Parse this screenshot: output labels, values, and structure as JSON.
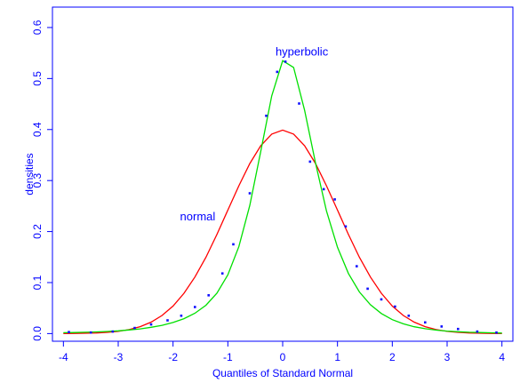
{
  "chart_data": {
    "type": "line",
    "title": "",
    "xlabel": "Quantiles of Standard Normal",
    "ylabel": "densities",
    "xlim": [
      -4.2,
      4.2
    ],
    "ylim": [
      -0.015,
      0.64
    ],
    "xticks": [
      -4,
      -3,
      -2,
      -1,
      0,
      1,
      2,
      3,
      4
    ],
    "yticks": [
      0.0,
      0.1,
      0.2,
      0.3,
      0.4,
      0.5,
      0.6
    ],
    "xtick_labels": [
      "-4",
      "-3",
      "-2",
      "-1",
      "0",
      "1",
      "2",
      "3",
      "4"
    ],
    "ytick_labels": [
      "0.0",
      "0.1",
      "0.2",
      "0.3",
      "0.4",
      "0.5",
      "0.6"
    ],
    "grid": false,
    "annotations": [
      {
        "text": "hyperbolic",
        "x": 0.35,
        "y": 0.545
      },
      {
        "text": "normal",
        "x": -1.55,
        "y": 0.222
      }
    ],
    "series": [
      {
        "type": "line",
        "color": "#ff0000",
        "x": [
          -4.0,
          -3.8,
          -3.6,
          -3.4,
          -3.2,
          -3.0,
          -2.8,
          -2.6,
          -2.4,
          -2.2,
          -2.0,
          -1.8,
          -1.6,
          -1.4,
          -1.2,
          -1.0,
          -0.8,
          -0.6,
          -0.4,
          -0.2,
          0.0,
          0.2,
          0.4,
          0.6,
          0.8,
          1.0,
          1.2,
          1.4,
          1.6,
          1.8,
          2.0,
          2.2,
          2.4,
          2.6,
          2.8,
          3.0,
          3.2,
          3.4,
          3.6,
          3.8,
          4.0
        ],
        "y": [
          0.0001,
          0.0003,
          0.0006,
          0.0012,
          0.0024,
          0.0044,
          0.0079,
          0.0136,
          0.0224,
          0.0355,
          0.054,
          0.079,
          0.1109,
          0.1497,
          0.1942,
          0.242,
          0.2897,
          0.3332,
          0.3683,
          0.391,
          0.3989,
          0.391,
          0.3683,
          0.3332,
          0.2897,
          0.242,
          0.1942,
          0.1497,
          0.1109,
          0.079,
          0.054,
          0.0355,
          0.0224,
          0.0136,
          0.0079,
          0.0044,
          0.0024,
          0.0012,
          0.0006,
          0.0003,
          0.0001
        ]
      },
      {
        "type": "line",
        "color": "#00e000",
        "x": [
          -4.0,
          -3.8,
          -3.6,
          -3.4,
          -3.2,
          -3.0,
          -2.8,
          -2.6,
          -2.4,
          -2.2,
          -2.0,
          -1.8,
          -1.6,
          -1.4,
          -1.2,
          -1.0,
          -0.8,
          -0.6,
          -0.4,
          -0.2,
          0.0,
          0.2,
          0.4,
          0.6,
          0.8,
          1.0,
          1.2,
          1.4,
          1.6,
          1.8,
          2.0,
          2.2,
          2.4,
          2.6,
          2.8,
          3.0,
          3.2,
          3.4,
          3.6,
          3.8,
          4.0
        ],
        "y": [
          0.0017,
          0.0021,
          0.0026,
          0.0033,
          0.0042,
          0.0054,
          0.0071,
          0.0093,
          0.0123,
          0.0162,
          0.0217,
          0.0292,
          0.0399,
          0.0556,
          0.0791,
          0.1152,
          0.1704,
          0.2512,
          0.3567,
          0.4659,
          0.535,
          0.5218,
          0.4375,
          0.3341,
          0.2402,
          0.1691,
          0.1178,
          0.0816,
          0.0566,
          0.0393,
          0.0273,
          0.0191,
          0.0134,
          0.0095,
          0.0068,
          0.0049,
          0.0036,
          0.0026,
          0.002,
          0.0015,
          0.0011
        ]
      },
      {
        "type": "scatter",
        "color": "#1010ff",
        "x": [
          -3.9,
          -3.5,
          -3.1,
          -2.7,
          -2.4,
          -2.1,
          -1.85,
          -1.6,
          -1.35,
          -1.1,
          -0.9,
          -0.6,
          -0.3,
          -0.1,
          0.05,
          0.3,
          0.5,
          0.75,
          0.95,
          1.15,
          1.35,
          1.55,
          1.8,
          2.05,
          2.3,
          2.6,
          2.9,
          3.2,
          3.55,
          3.9
        ],
        "y": [
          0.003,
          0.002,
          0.004,
          0.011,
          0.018,
          0.026,
          0.035,
          0.052,
          0.075,
          0.118,
          0.175,
          0.275,
          0.427,
          0.513,
          0.533,
          0.451,
          0.337,
          0.283,
          0.263,
          0.21,
          0.132,
          0.088,
          0.067,
          0.053,
          0.035,
          0.022,
          0.014,
          0.009,
          0.004,
          0.002
        ]
      }
    ]
  }
}
